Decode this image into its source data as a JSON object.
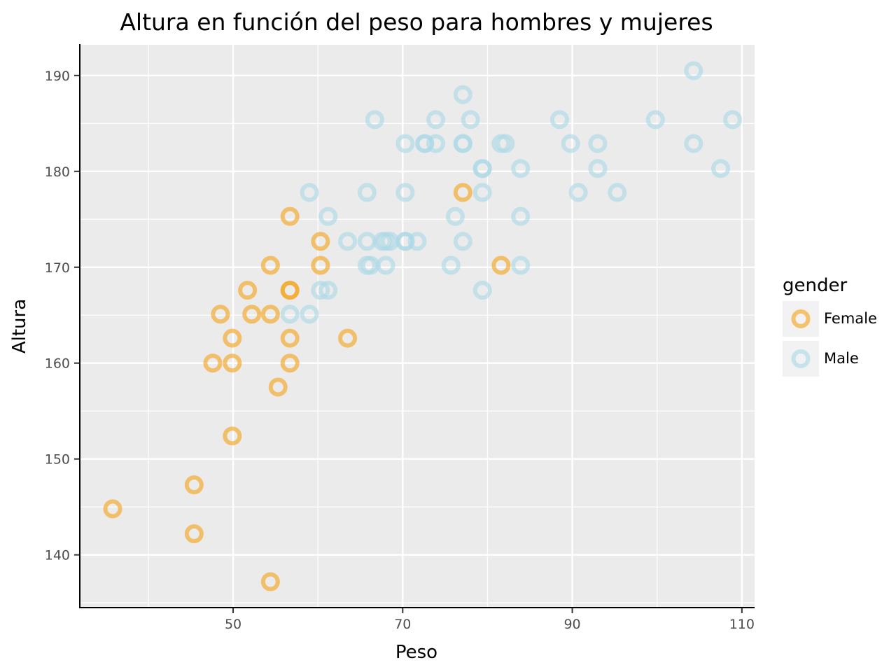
{
  "chart_data": {
    "type": "scatter",
    "title": "Altura en función del peso para hombres y mujeres",
    "xlabel": "Peso",
    "ylabel": "Altura",
    "xlim": [
      32,
      111.5
    ],
    "ylim": [
      134.5,
      193.2
    ],
    "x_ticks": [
      50,
      70,
      90,
      110
    ],
    "y_ticks": [
      140,
      150,
      160,
      170,
      180,
      190
    ],
    "grid": true,
    "legend": {
      "title": "gender",
      "placement": "right"
    },
    "series": [
      {
        "name": "Female",
        "color": "#f5a623",
        "points": [
          [
            35.8,
            144.8
          ],
          [
            45.4,
            147.3
          ],
          [
            45.4,
            142.2
          ],
          [
            47.6,
            160.0
          ],
          [
            48.5,
            165.1
          ],
          [
            49.9,
            162.6
          ],
          [
            49.9,
            160.0
          ],
          [
            49.9,
            152.4
          ],
          [
            51.7,
            167.6
          ],
          [
            52.2,
            165.1
          ],
          [
            54.4,
            165.1
          ],
          [
            54.4,
            137.2
          ],
          [
            54.4,
            170.2
          ],
          [
            55.3,
            157.5
          ],
          [
            56.7,
            175.3
          ],
          [
            56.7,
            167.6
          ],
          [
            56.7,
            167.6
          ],
          [
            56.7,
            162.6
          ],
          [
            56.7,
            160.0
          ],
          [
            60.3,
            172.7
          ],
          [
            60.3,
            170.2
          ],
          [
            63.5,
            162.6
          ],
          [
            77.1,
            177.8
          ],
          [
            81.6,
            170.2
          ]
        ]
      },
      {
        "name": "Male",
        "color": "#add8e6",
        "points": [
          [
            56.7,
            165.1
          ],
          [
            59.0,
            165.1
          ],
          [
            59.0,
            177.8
          ],
          [
            60.3,
            167.6
          ],
          [
            61.2,
            167.6
          ],
          [
            61.2,
            175.3
          ],
          [
            63.5,
            172.7
          ],
          [
            65.8,
            177.8
          ],
          [
            65.8,
            172.7
          ],
          [
            65.8,
            170.2
          ],
          [
            66.2,
            170.2
          ],
          [
            66.7,
            185.4
          ],
          [
            67.6,
            172.7
          ],
          [
            68.0,
            172.7
          ],
          [
            68.0,
            170.2
          ],
          [
            68.5,
            172.7
          ],
          [
            70.3,
            182.9
          ],
          [
            70.3,
            177.8
          ],
          [
            70.3,
            172.7
          ],
          [
            70.3,
            172.7
          ],
          [
            71.7,
            172.7
          ],
          [
            72.6,
            182.9
          ],
          [
            72.6,
            182.9
          ],
          [
            73.9,
            185.4
          ],
          [
            73.9,
            182.9
          ],
          [
            75.7,
            170.2
          ],
          [
            76.2,
            175.3
          ],
          [
            77.1,
            188.0
          ],
          [
            77.1,
            182.9
          ],
          [
            77.1,
            182.9
          ],
          [
            77.1,
            172.7
          ],
          [
            78.0,
            185.4
          ],
          [
            79.4,
            180.3
          ],
          [
            79.4,
            180.3
          ],
          [
            79.4,
            177.8
          ],
          [
            79.4,
            167.6
          ],
          [
            81.6,
            182.9
          ],
          [
            82.1,
            182.9
          ],
          [
            83.9,
            180.3
          ],
          [
            83.9,
            175.3
          ],
          [
            83.9,
            170.2
          ],
          [
            88.5,
            185.4
          ],
          [
            89.8,
            182.9
          ],
          [
            90.7,
            177.8
          ],
          [
            93.0,
            182.9
          ],
          [
            93.0,
            180.3
          ],
          [
            95.3,
            177.8
          ],
          [
            99.8,
            185.4
          ],
          [
            104.3,
            190.5
          ],
          [
            104.3,
            182.9
          ],
          [
            107.5,
            180.3
          ],
          [
            108.9,
            185.4
          ]
        ]
      }
    ]
  }
}
